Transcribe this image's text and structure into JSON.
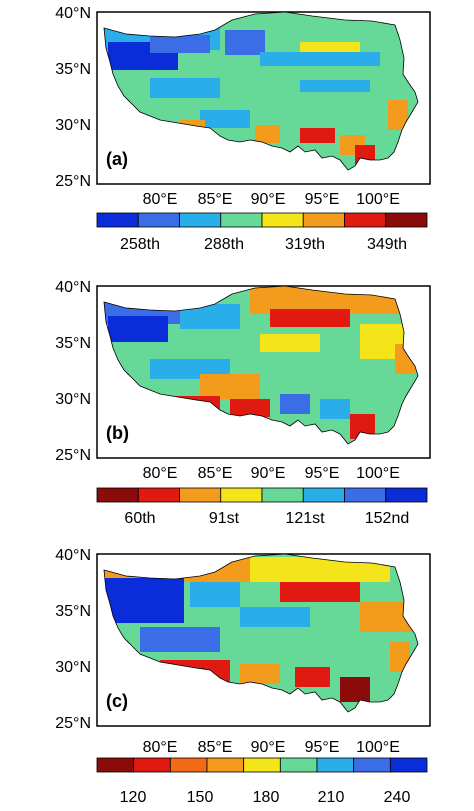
{
  "lat_labels": [
    "40°N",
    "35°N",
    "30°N",
    "25°N"
  ],
  "lon_labels": [
    "80°E",
    "85°E",
    "90°E",
    "95°E",
    "100°E"
  ],
  "panels": [
    {
      "label": "(a)",
      "colorbar": {
        "colors": [
          "#0b2dd9",
          "#3b6ee6",
          "#2aaee9",
          "#66d998",
          "#f4e41a",
          "#f39b1c",
          "#e01a10",
          "#8b0b0b"
        ],
        "labels": [
          "258th",
          "288th",
          "319th",
          "349th"
        ]
      }
    },
    {
      "label": "(b)",
      "colorbar": {
        "colors": [
          "#8b0b0b",
          "#e01a10",
          "#f39b1c",
          "#f4e41a",
          "#66d998",
          "#2aaee9",
          "#3b6ee6",
          "#0b2dd9"
        ],
        "labels": [
          "60th",
          "91st",
          "121st",
          "152nd"
        ]
      }
    },
    {
      "label": "(c)",
      "colorbar": {
        "colors": [
          "#8b0b0b",
          "#e01a10",
          "#f36a16",
          "#f39b1c",
          "#f4e41a",
          "#66d998",
          "#2aaee9",
          "#3b6ee6",
          "#0b2dd9"
        ],
        "labels": [
          "120",
          "150",
          "180",
          "210",
          "240"
        ]
      }
    }
  ]
}
